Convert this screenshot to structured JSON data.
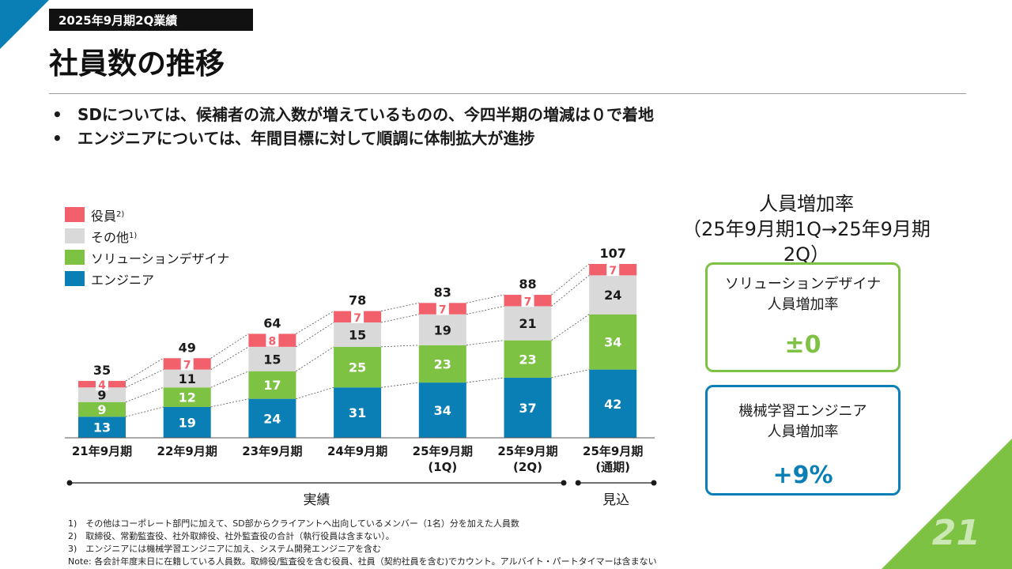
{
  "header": {
    "tag": "2025年9月期2Q業績",
    "title": "社員数の推移"
  },
  "bullets": [
    "SDについては、候補者の流入数が増えているものの、今四半期の増減は０で着地",
    "エンジニアについては、年間目標に対して順調に体制拡大が進捗"
  ],
  "legend": [
    {
      "label": "役員",
      "note": "2)",
      "color": "#f2606b"
    },
    {
      "label": "その他",
      "note": "1)",
      "color": "#d9d9d9"
    },
    {
      "label": "ソリューションデザイナ",
      "note": "",
      "color": "#7dc243"
    },
    {
      "label": "エンジニア",
      "note": "",
      "color": "#0a7fb5"
    }
  ],
  "chart_data": {
    "type": "bar",
    "stacked": true,
    "categories": [
      "21年9月期",
      "22年9月期",
      "23年9月期",
      "24年9月期",
      "25年9月期\n(1Q)",
      "25年9月期\n(2Q)",
      "25年9月期\n(通期)"
    ],
    "series": [
      {
        "name": "エンジニア",
        "color": "#0a7fb5",
        "values": [
          13,
          19,
          24,
          31,
          34,
          37,
          42
        ]
      },
      {
        "name": "ソリューションデザイナ",
        "color": "#7dc243",
        "values": [
          9,
          12,
          17,
          25,
          23,
          23,
          34
        ]
      },
      {
        "name": "その他",
        "color": "#d9d9d9",
        "values": [
          9,
          11,
          15,
          15,
          19,
          21,
          24
        ]
      },
      {
        "name": "役員",
        "color": "#f2606b",
        "values": [
          4,
          7,
          8,
          7,
          7,
          7,
          7
        ]
      }
    ],
    "totals": [
      35,
      49,
      64,
      78,
      83,
      88,
      107
    ],
    "groups": [
      {
        "label": "実績",
        "from": 0,
        "to": 5
      },
      {
        "label": "見込",
        "from": 6,
        "to": 6
      }
    ],
    "ylim": [
      0,
      107
    ],
    "legend_position": "top-left"
  },
  "rate": {
    "title_line1": "人員増加率",
    "title_line2": "（25年9月期1Q→25年9月期2Q）",
    "cards": [
      {
        "label_line1": "ソリューションデザイナ",
        "label_line2": "人員増加率",
        "value": "±0"
      },
      {
        "label_line1": "機械学習エンジニア",
        "label_line2": "人員増加率",
        "value": "+9%"
      }
    ]
  },
  "notes": [
    "1)　その他はコーポレート部門に加えて、SD部からクライアントへ出向しているメンバー（1名）分を加えた人員数",
    "2)　取締役、常勤監査役、社外取締役、社外監査役の合計（執行役員は含まない）。",
    "3)　エンジニアには機械学習エンジニアに加え、システム開発エンジニアを含む",
    "Note: 各会計年度末日に在籍している人員数。取締役/監査役を含む役員、社員（契約社員を含む)でカウント。アルバイト・パートタイマーは含まない"
  ],
  "page_number": "21"
}
